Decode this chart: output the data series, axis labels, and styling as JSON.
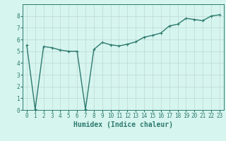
{
  "x": [
    0,
    1,
    2,
    3,
    4,
    5,
    6,
    7,
    8,
    9,
    10,
    11,
    12,
    13,
    14,
    15,
    16,
    17,
    18,
    19,
    20,
    21,
    22,
    23
  ],
  "y": [
    5.5,
    0.05,
    5.4,
    5.3,
    5.1,
    5.0,
    5.0,
    0.05,
    5.15,
    5.75,
    5.55,
    5.45,
    5.6,
    5.8,
    6.2,
    6.35,
    6.55,
    7.15,
    7.3,
    7.8,
    7.7,
    7.6,
    8.0,
    8.1
  ],
  "line_color": "#2d7a6e",
  "marker": "+",
  "markersize": 3,
  "linewidth": 1.0,
  "bg_color": "#d6f5ef",
  "grid_color": "#c0d8d4",
  "xlabel": "Humidex (Indice chaleur)",
  "xlim": [
    -0.5,
    23.5
  ],
  "ylim": [
    0,
    9
  ],
  "yticks": [
    0,
    1,
    2,
    3,
    4,
    5,
    6,
    7,
    8
  ],
  "xtick_labels": [
    "0",
    "1",
    "2",
    "3",
    "4",
    "5",
    "6",
    "7",
    "8",
    "9",
    "10",
    "11",
    "12",
    "13",
    "14",
    "15",
    "16",
    "17",
    "18",
    "19",
    "20",
    "21",
    "22",
    "23"
  ],
  "tick_fontsize": 5.5,
  "xlabel_fontsize": 7.0,
  "axis_color": "#2d7a6e"
}
